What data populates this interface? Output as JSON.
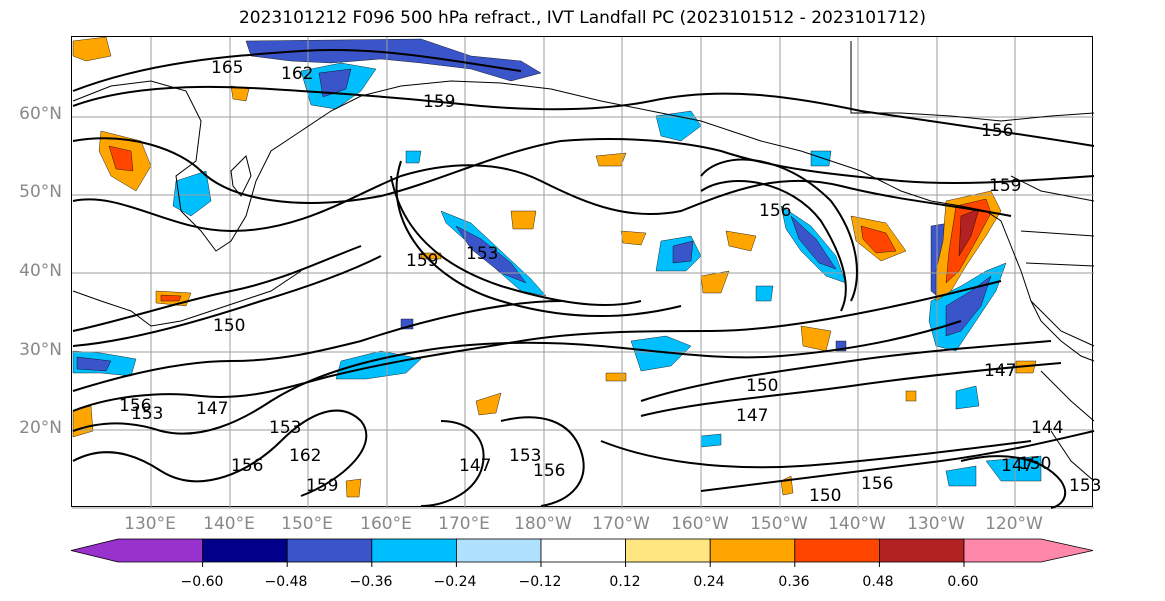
{
  "title": "2023101212 F096 500 hPa refract., IVT Landfall PC (2023101512 - 2023101712)",
  "map": {
    "lat_labels": [
      "60°N",
      "50°N",
      "40°N",
      "30°N",
      "20°N"
    ],
    "lon_labels": [
      "130°E",
      "140°E",
      "150°E",
      "160°E",
      "170°E",
      "180°W",
      "170°W",
      "160°W",
      "150°W",
      "140°W",
      "130°W",
      "120°W"
    ],
    "contour_labels": [
      "165",
      "162",
      "159",
      "156",
      "159",
      "153",
      "159",
      "150",
      "156",
      "150",
      "147",
      "147",
      "144",
      "156",
      "153",
      "147",
      "153",
      "162",
      "159",
      "156",
      "147",
      "153",
      "156",
      "150",
      "156",
      "147",
      "150",
      "153"
    ],
    "contour_color": "#000000",
    "coastline_color": "#000000",
    "grid_color": "#9e9e9e"
  },
  "colorbar": {
    "ticks": [
      "−0.60",
      "−0.48",
      "−0.36",
      "−0.24",
      "−0.12",
      "0.12",
      "0.24",
      "0.36",
      "0.48",
      "0.60"
    ],
    "colors": [
      "#9932cc",
      "#00008b",
      "#3a55c9",
      "#00bfff",
      "#b0e2ff",
      "#ffffff",
      "#ffe680",
      "#ffa500",
      "#ff4500",
      "#b22222",
      "#ff88aa"
    ]
  }
}
